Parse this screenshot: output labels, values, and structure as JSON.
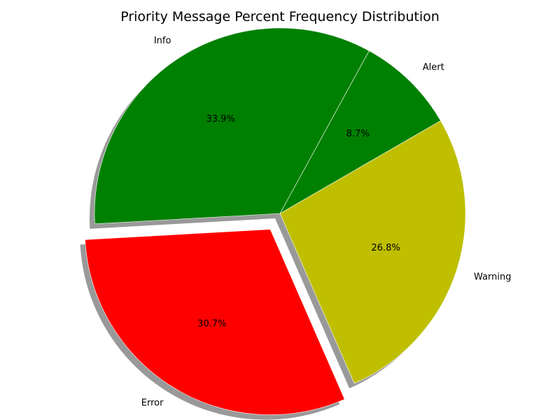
{
  "chart_data": {
    "type": "pie",
    "title": "Priority Message Percent Frequency Distribution",
    "slices": [
      {
        "label": "Alert",
        "value": 8.7,
        "percent_label": "8.7%",
        "color": "#008000",
        "exploded": false
      },
      {
        "label": "Info",
        "value": 33.9,
        "percent_label": "33.9%",
        "color": "#008000",
        "exploded": false
      },
      {
        "label": "Error",
        "value": 30.7,
        "percent_label": "30.7%",
        "color": "#ff0000",
        "exploded": true
      },
      {
        "label": "Warning",
        "value": 26.8,
        "percent_label": "26.8%",
        "color": "#bfbf00",
        "exploded": false
      }
    ],
    "start_angle_deg": 30,
    "direction": "counterclockwise",
    "shadow": true
  }
}
